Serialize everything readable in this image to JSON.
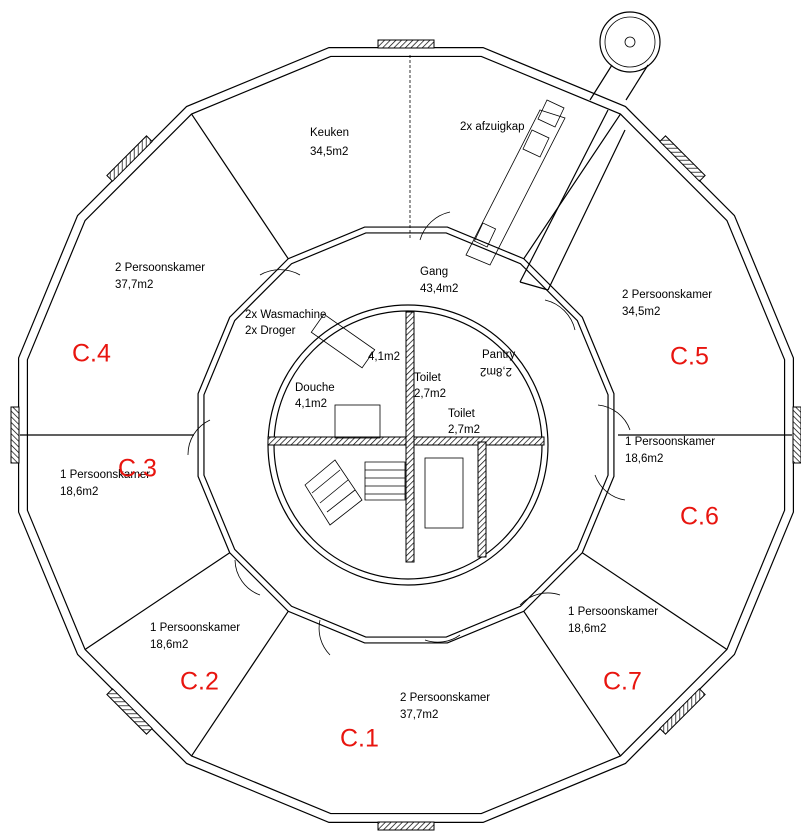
{
  "rooms": [
    {
      "name": "Keuken",
      "area": "34,5m2"
    },
    {
      "name": "Gang",
      "area": "43,4m2"
    },
    {
      "name": "2 Persoonskamer",
      "area": "37,7m2",
      "code": "C.4"
    },
    {
      "name": "2 Persoonskamer",
      "area": "34,5m2",
      "code": "C.5"
    },
    {
      "name": "1 Persoonskamer",
      "area": "18,6m2",
      "code": "C.3"
    },
    {
      "name": "1 Persoonskamer",
      "area": "18,6m2",
      "code": "C.6"
    },
    {
      "name": "1 Persoonskamer",
      "area": "18,6m2",
      "code": "C.2"
    },
    {
      "name": "1 Persoonskamer",
      "area": "18,6m2",
      "code": "C.7"
    },
    {
      "name": "2 Persoonskamer",
      "area": "37,7m2",
      "code": "C.1"
    },
    {
      "name": "Douche",
      "area": "4,1m2"
    },
    {
      "name": "Toilet",
      "area": "2,7m2"
    },
    {
      "name": "Pantry",
      "area": "2,8m2"
    },
    {
      "name": "Toilet",
      "area": "2,7m2"
    },
    {
      "area": "4,1m2"
    }
  ],
  "fixtures": [
    "2x afzuigkap",
    "2x Wasmachine",
    "2x Droger"
  ]
}
